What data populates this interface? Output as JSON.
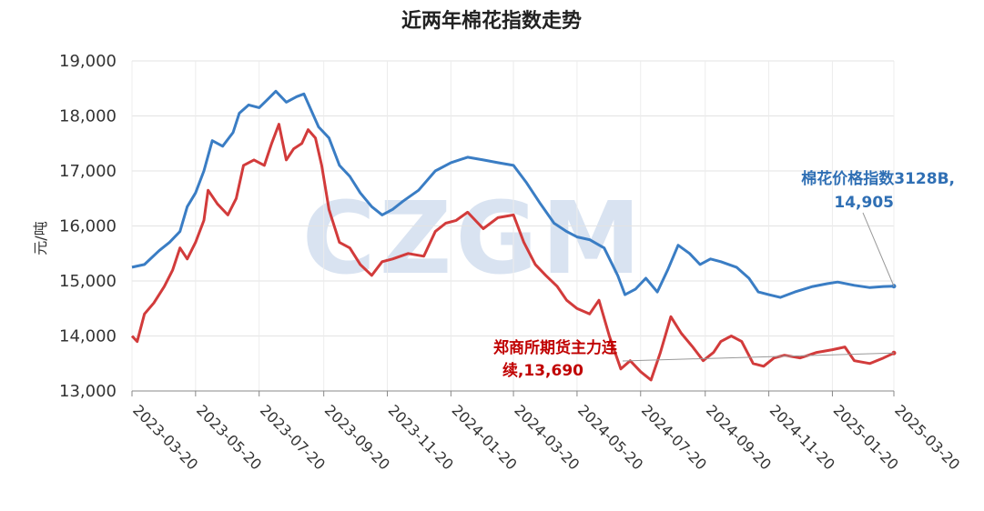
{
  "chart_data": {
    "type": "line",
    "title": "近两年棉花指数走势",
    "ylabel": "元/吨",
    "xlabel": "",
    "ylim": [
      13000,
      19000
    ],
    "x_range": [
      "2023-03-20",
      "2025-03-20"
    ],
    "yticks": [
      "13,000",
      "14,000",
      "15,000",
      "16,000",
      "17,000",
      "18,000",
      "19,000"
    ],
    "ytick_values": [
      13000,
      14000,
      15000,
      16000,
      17000,
      18000,
      19000
    ],
    "xticks": [
      "2023-03-20",
      "2023-05-20",
      "2023-07-20",
      "2023-09-20",
      "2023-11-20",
      "2024-01-20",
      "2024-03-20",
      "2024-05-20",
      "2024-07-20",
      "2024-09-20",
      "2024-11-20",
      "2025-01-20",
      "2025-03-20"
    ],
    "grid": true,
    "watermark": "CZGM",
    "series": [
      {
        "name": "棉花价格指数3128B",
        "color": "#3a7dc4",
        "points": [
          [
            "2023-03-20",
            15250
          ],
          [
            "2023-04-01",
            15300
          ],
          [
            "2023-04-15",
            15550
          ],
          [
            "2023-04-25",
            15700
          ],
          [
            "2023-05-05",
            15900
          ],
          [
            "2023-05-12",
            16350
          ],
          [
            "2023-05-20",
            16600
          ],
          [
            "2023-05-28",
            17000
          ],
          [
            "2023-06-05",
            17550
          ],
          [
            "2023-06-15",
            17450
          ],
          [
            "2023-06-25",
            17700
          ],
          [
            "2023-07-01",
            18050
          ],
          [
            "2023-07-10",
            18200
          ],
          [
            "2023-07-20",
            18150
          ],
          [
            "2023-07-28",
            18300
          ],
          [
            "2023-08-05",
            18450
          ],
          [
            "2023-08-15",
            18250
          ],
          [
            "2023-08-25",
            18350
          ],
          [
            "2023-09-01",
            18400
          ],
          [
            "2023-09-08",
            18100
          ],
          [
            "2023-09-15",
            17800
          ],
          [
            "2023-09-25",
            17600
          ],
          [
            "2023-10-05",
            17100
          ],
          [
            "2023-10-15",
            16900
          ],
          [
            "2023-10-25",
            16600
          ],
          [
            "2023-11-05",
            16350
          ],
          [
            "2023-11-15",
            16200
          ],
          [
            "2023-11-25",
            16300
          ],
          [
            "2023-12-05",
            16450
          ],
          [
            "2023-12-20",
            16650
          ],
          [
            "2024-01-05",
            17000
          ],
          [
            "2024-01-20",
            17150
          ],
          [
            "2024-02-05",
            17250
          ],
          [
            "2024-02-20",
            17200
          ],
          [
            "2024-03-05",
            17150
          ],
          [
            "2024-03-20",
            17100
          ],
          [
            "2024-04-01",
            16800
          ],
          [
            "2024-04-15",
            16400
          ],
          [
            "2024-04-28",
            16050
          ],
          [
            "2024-05-10",
            15900
          ],
          [
            "2024-05-20",
            15800
          ],
          [
            "2024-06-01",
            15750
          ],
          [
            "2024-06-15",
            15600
          ],
          [
            "2024-06-28",
            15100
          ],
          [
            "2024-07-05",
            14750
          ],
          [
            "2024-07-15",
            14850
          ],
          [
            "2024-07-25",
            15050
          ],
          [
            "2024-08-05",
            14800
          ],
          [
            "2024-08-15",
            15200
          ],
          [
            "2024-08-25",
            15650
          ],
          [
            "2024-09-05",
            15500
          ],
          [
            "2024-09-15",
            15300
          ],
          [
            "2024-09-25",
            15400
          ],
          [
            "2024-10-05",
            15350
          ],
          [
            "2024-10-20",
            15250
          ],
          [
            "2024-11-01",
            15050
          ],
          [
            "2024-11-10",
            14800
          ],
          [
            "2024-11-20",
            14750
          ],
          [
            "2024-12-01",
            14700
          ],
          [
            "2024-12-15",
            14800
          ],
          [
            "2025-01-01",
            14900
          ],
          [
            "2025-01-15",
            14950
          ],
          [
            "2025-01-25",
            14980
          ],
          [
            "2025-02-10",
            14920
          ],
          [
            "2025-02-25",
            14880
          ],
          [
            "2025-03-10",
            14900
          ],
          [
            "2025-03-20",
            14905
          ]
        ],
        "end_label": "棉花价格指数3128B,",
        "end_value": "14,905"
      },
      {
        "name": "郑商所期货主力连续",
        "color": "#d23b3b",
        "points": [
          [
            "2023-03-20",
            14000
          ],
          [
            "2023-03-25",
            13900
          ],
          [
            "2023-04-01",
            14400
          ],
          [
            "2023-04-10",
            14600
          ],
          [
            "2023-04-20",
            14900
          ],
          [
            "2023-04-28",
            15200
          ],
          [
            "2023-05-05",
            15600
          ],
          [
            "2023-05-12",
            15400
          ],
          [
            "2023-05-20",
            15700
          ],
          [
            "2023-05-28",
            16100
          ],
          [
            "2023-06-01",
            16650
          ],
          [
            "2023-06-10",
            16400
          ],
          [
            "2023-06-20",
            16200
          ],
          [
            "2023-06-28",
            16500
          ],
          [
            "2023-07-05",
            17100
          ],
          [
            "2023-07-15",
            17200
          ],
          [
            "2023-07-25",
            17100
          ],
          [
            "2023-08-01",
            17500
          ],
          [
            "2023-08-08",
            17850
          ],
          [
            "2023-08-15",
            17200
          ],
          [
            "2023-08-22",
            17400
          ],
          [
            "2023-08-30",
            17500
          ],
          [
            "2023-09-05",
            17750
          ],
          [
            "2023-09-12",
            17600
          ],
          [
            "2023-09-18",
            17100
          ],
          [
            "2023-09-25",
            16300
          ],
          [
            "2023-10-05",
            15700
          ],
          [
            "2023-10-15",
            15600
          ],
          [
            "2023-10-25",
            15300
          ],
          [
            "2023-11-05",
            15100
          ],
          [
            "2023-11-15",
            15350
          ],
          [
            "2023-11-25",
            15400
          ],
          [
            "2023-12-10",
            15500
          ],
          [
            "2023-12-25",
            15450
          ],
          [
            "2024-01-05",
            15900
          ],
          [
            "2024-01-15",
            16050
          ],
          [
            "2024-01-25",
            16100
          ],
          [
            "2024-02-05",
            16250
          ],
          [
            "2024-02-20",
            15950
          ],
          [
            "2024-03-05",
            16150
          ],
          [
            "2024-03-20",
            16200
          ],
          [
            "2024-03-30",
            15700
          ],
          [
            "2024-04-10",
            15300
          ],
          [
            "2024-04-20",
            15100
          ],
          [
            "2024-05-01",
            14900
          ],
          [
            "2024-05-10",
            14650
          ],
          [
            "2024-05-20",
            14500
          ],
          [
            "2024-06-01",
            14400
          ],
          [
            "2024-06-10",
            14650
          ],
          [
            "2024-06-20",
            14000
          ],
          [
            "2024-07-01",
            13400
          ],
          [
            "2024-07-10",
            13550
          ],
          [
            "2024-07-20",
            13350
          ],
          [
            "2024-07-30",
            13200
          ],
          [
            "2024-08-08",
            13700
          ],
          [
            "2024-08-18",
            14350
          ],
          [
            "2024-08-28",
            14050
          ],
          [
            "2024-09-08",
            13800
          ],
          [
            "2024-09-18",
            13550
          ],
          [
            "2024-09-28",
            13700
          ],
          [
            "2024-10-05",
            13900
          ],
          [
            "2024-10-15",
            14000
          ],
          [
            "2024-10-25",
            13900
          ],
          [
            "2024-11-05",
            13500
          ],
          [
            "2024-11-15",
            13450
          ],
          [
            "2024-11-25",
            13600
          ],
          [
            "2024-12-05",
            13650
          ],
          [
            "2024-12-20",
            13600
          ],
          [
            "2025-01-05",
            13700
          ],
          [
            "2025-01-20",
            13750
          ],
          [
            "2025-02-01",
            13800
          ],
          [
            "2025-02-10",
            13550
          ],
          [
            "2025-02-25",
            13500
          ],
          [
            "2025-03-10",
            13600
          ],
          [
            "2025-03-20",
            13690
          ]
        ],
        "end_label_1": "郑商所期货主力连",
        "end_label_2": "续,13,690"
      }
    ]
  }
}
